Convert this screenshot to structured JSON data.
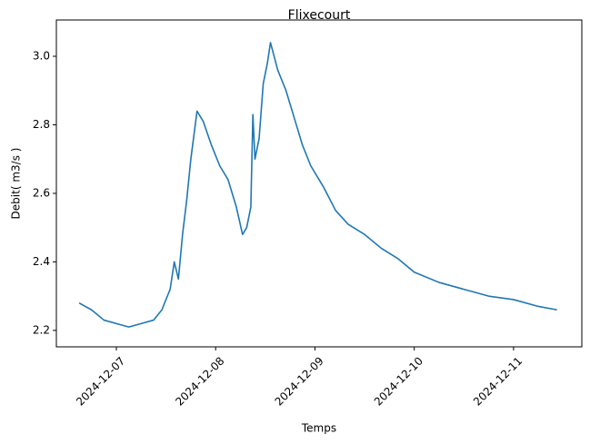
{
  "chart_data": {
    "type": "line",
    "title": "Flixecourt",
    "x_label": "Temps",
    "y_label": "Debit( m3/s )",
    "x": [
      "2024-12-06T15:00",
      "2024-12-06T18:00",
      "2024-12-06T21:00",
      "2024-12-07T00:00",
      "2024-12-07T03:00",
      "2024-12-07T06:00",
      "2024-12-07T09:00",
      "2024-12-07T11:00",
      "2024-12-07T13:00",
      "2024-12-07T14:00",
      "2024-12-07T15:00",
      "2024-12-07T16:00",
      "2024-12-07T17:00",
      "2024-12-07T18:00",
      "2024-12-07T19:30",
      "2024-12-07T21:00",
      "2024-12-07T23:00",
      "2024-12-08T01:00",
      "2024-12-08T03:00",
      "2024-12-08T05:00",
      "2024-12-08T06:30",
      "2024-12-08T07:30",
      "2024-12-08T08:30",
      "2024-12-08T09:00",
      "2024-12-08T09:30",
      "2024-12-08T10:30",
      "2024-12-08T11:30",
      "2024-12-08T12:30",
      "2024-12-08T13:15",
      "2024-12-08T15:00",
      "2024-12-08T17:00",
      "2024-12-08T19:00",
      "2024-12-08T21:00",
      "2024-12-08T23:00",
      "2024-12-09T02:00",
      "2024-12-09T05:00",
      "2024-12-09T08:00",
      "2024-12-09T12:00",
      "2024-12-09T16:00",
      "2024-12-09T20:00",
      "2024-12-10T00:00",
      "2024-12-10T06:00",
      "2024-12-10T12:00",
      "2024-12-10T18:00",
      "2024-12-11T00:00",
      "2024-12-11T06:00",
      "2024-12-11T10:30"
    ],
    "series": [
      {
        "name": "Debit",
        "color": "#1f77b4",
        "values": [
          2.28,
          2.26,
          2.23,
          2.22,
          2.21,
          2.22,
          2.23,
          2.26,
          2.32,
          2.4,
          2.35,
          2.48,
          2.58,
          2.7,
          2.84,
          2.81,
          2.74,
          2.68,
          2.64,
          2.56,
          2.48,
          2.5,
          2.56,
          2.83,
          2.7,
          2.76,
          2.92,
          2.98,
          3.04,
          2.96,
          2.9,
          2.82,
          2.74,
          2.68,
          2.62,
          2.55,
          2.51,
          2.48,
          2.44,
          2.41,
          2.37,
          2.34,
          2.32,
          2.3,
          2.29,
          2.27,
          2.26
        ]
      }
    ],
    "xlim": [
      "2024-12-06T09:30",
      "2024-12-11T16:30"
    ],
    "xticks": [
      "2024-12-07",
      "2024-12-08",
      "2024-12-09",
      "2024-12-10",
      "2024-12-11"
    ],
    "ylim": [
      2.152,
      3.106
    ],
    "yticks": [
      2.2,
      2.4,
      2.6,
      2.8,
      {
        "value": 3.0,
        "label": "3.0"
      }
    ]
  }
}
